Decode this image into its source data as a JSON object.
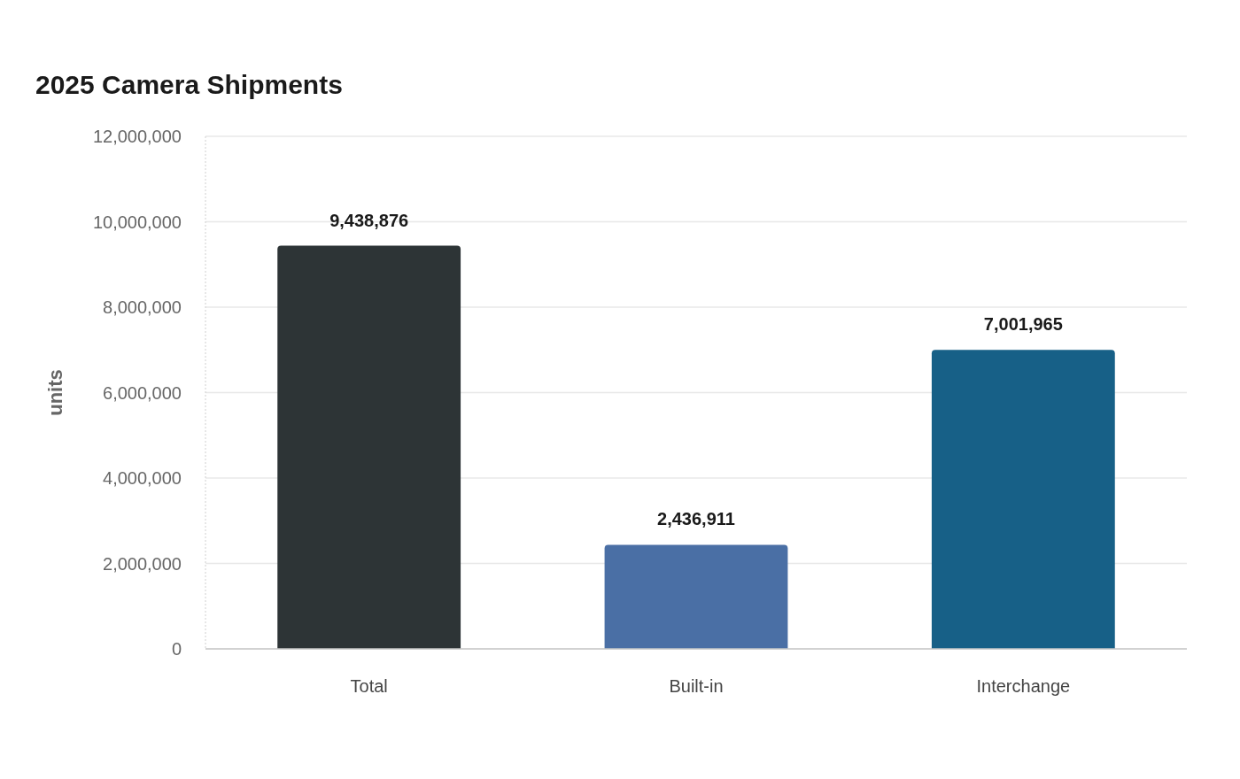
{
  "chart_data": {
    "type": "bar",
    "title": "2025 Camera Shipments",
    "ylabel": "units",
    "categories": [
      "Total",
      "Built-in",
      "Interchange"
    ],
    "values": [
      9438876,
      2436911,
      7001965
    ],
    "value_labels": [
      "9,438,876",
      "2,436,911",
      "7,001,965"
    ],
    "colors": [
      "#2d3436",
      "#4a6fa5",
      "#176087"
    ],
    "ylim": [
      0,
      12000000
    ],
    "yticks": [
      0,
      {
        "value": 2000000,
        "label": "2,000,000"
      },
      {
        "value": 4000000,
        "label": "4,000,000"
      },
      {
        "value": 6000000,
        "label": "6,000,000"
      },
      {
        "value": 8000000,
        "label": "8,000,000"
      },
      {
        "value": 10000000,
        "label": "10,000,000"
      },
      {
        "value": 12000000,
        "label": "12,000,000"
      }
    ],
    "grid": "y"
  }
}
